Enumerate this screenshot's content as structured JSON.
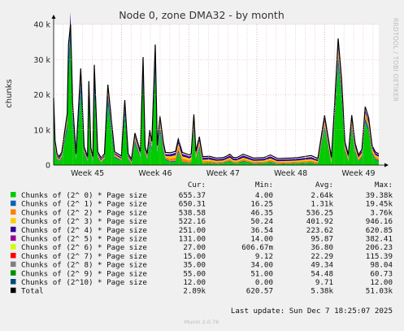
{
  "chart_data": {
    "type": "area",
    "title": "Node 0, zone DMA32 - by month",
    "ylabel": "chunks",
    "side_label": "RRDTOOL / TOBI OETIKER",
    "x_ticks": [
      "Week 45",
      "Week 46",
      "Week 47",
      "Week 48",
      "Week 49"
    ],
    "y_ticks": [
      "0",
      "10 k",
      "20 k",
      "30 k",
      "40 k"
    ],
    "y_tick_values": [
      0,
      10000,
      20000,
      30000,
      40000
    ],
    "ylim": [
      0,
      40000
    ],
    "xlim": [
      0,
      4.8
    ],
    "grid": true,
    "legend_headers": [
      "Cur:",
      "Min:",
      "Avg:",
      "Max:"
    ],
    "series": [
      {
        "name": "Chunks of (2^ 0) * Page size",
        "color": "#00cc00",
        "cur": "655.37",
        "min": "4.00",
        "avg": "2.64k",
        "max": "39.38k"
      },
      {
        "name": "Chunks of (2^ 1) * Page size",
        "color": "#0066b3",
        "cur": "650.31",
        "min": "16.25",
        "avg": "1.31k",
        "max": "19.45k"
      },
      {
        "name": "Chunks of (2^ 2) * Page size",
        "color": "#ff8000",
        "cur": "538.58",
        "min": "46.35",
        "avg": "536.25",
        "max": "3.76k"
      },
      {
        "name": "Chunks of (2^ 3) * Page size",
        "color": "#ffcc00",
        "cur": "522.16",
        "min": "50.24",
        "avg": "401.92",
        "max": "946.16"
      },
      {
        "name": "Chunks of (2^ 4) * Page size",
        "color": "#330099",
        "cur": "251.00",
        "min": "36.54",
        "avg": "223.62",
        "max": "620.85"
      },
      {
        "name": "Chunks of (2^ 5) * Page size",
        "color": "#990099",
        "cur": "131.00",
        "min": "14.00",
        "avg": "95.87",
        "max": "382.41"
      },
      {
        "name": "Chunks of (2^ 6) * Page size",
        "color": "#ccff00",
        "cur": "27.00",
        "min": "606.67m",
        "avg": "36.80",
        "max": "206.23"
      },
      {
        "name": "Chunks of (2^ 7) * Page size",
        "color": "#ff0000",
        "cur": "15.00",
        "min": "9.12",
        "avg": "22.29",
        "max": "115.39"
      },
      {
        "name": "Chunks of (2^ 8) * Page size",
        "color": "#808080",
        "cur": "35.00",
        "min": "34.00",
        "avg": "49.34",
        "max": "98.04"
      },
      {
        "name": "Chunks of (2^ 9) * Page size",
        "color": "#008f00",
        "cur": "55.00",
        "min": "51.00",
        "avg": "54.48",
        "max": "60.73"
      },
      {
        "name": "Chunks of (2^10) * Page size",
        "color": "#00487d",
        "cur": "12.00",
        "min": "0.00",
        "avg": "9.71",
        "max": "12.00"
      },
      {
        "name": "Total",
        "color": "#000000",
        "cur": "2.89k",
        "min": "620.57",
        "avg": "5.38k",
        "max": "51.03k"
      }
    ],
    "stack_profile": {
      "x": [
        0,
        0.02,
        0.05,
        0.08,
        0.12,
        0.2,
        0.22,
        0.25,
        0.28,
        0.33,
        0.4,
        0.45,
        0.5,
        0.52,
        0.55,
        0.58,
        0.6,
        0.65,
        0.7,
        0.75,
        0.8,
        0.9,
        1.0,
        1.05,
        1.1,
        1.15,
        1.2,
        1.28,
        1.32,
        1.35,
        1.38,
        1.42,
        1.45,
        1.5,
        1.53,
        1.57,
        1.62,
        1.65,
        1.72,
        1.8,
        1.84,
        1.9,
        1.96,
        2.0,
        2.03,
        2.07,
        2.1,
        2.15,
        2.2,
        2.3,
        2.4,
        2.5,
        2.55,
        2.6,
        2.65,
        2.7,
        2.8,
        2.95,
        3.1,
        3.2,
        3.3,
        3.5,
        3.6,
        3.8,
        3.9,
        4.0,
        4.1,
        4.15,
        4.2,
        4.25,
        4.3,
        4.35,
        4.4,
        4.45,
        4.5,
        4.55,
        4.6,
        4.65,
        4.7,
        4.75,
        4.8
      ],
      "green": [
        13000,
        4000,
        1500,
        1000,
        2000,
        10000,
        25000,
        35000,
        12000,
        1500,
        20000,
        3000,
        1000,
        18000,
        3000,
        1000,
        21000,
        2000,
        800,
        1500,
        17000,
        2000,
        1200,
        14000,
        1500,
        500,
        6000,
        2000,
        24000,
        3000,
        1500,
        6000,
        4000,
        26000,
        3000,
        9000,
        3500,
        1500,
        800,
        900,
        3500,
        700,
        600,
        500,
        700,
        10000,
        1500,
        4500,
        500,
        600,
        400,
        500,
        800,
        1000,
        600,
        500,
        1000,
        400,
        500,
        800,
        300,
        400,
        500,
        700,
        300,
        10000,
        400,
        13000,
        28000,
        19000,
        4000,
        1000,
        10000,
        3500,
        1000,
        2000,
        12000,
        9500,
        3000,
        1500,
        1000
      ],
      "blue": [
        3000,
        1000,
        300,
        200,
        300,
        2000,
        5000,
        6000,
        3000,
        300,
        4000,
        600,
        200,
        3000,
        500,
        200,
        4000,
        400,
        100,
        300,
        3000,
        400,
        200,
        2000,
        300,
        100,
        1000,
        400,
        3000,
        600,
        300,
        1500,
        800,
        4000,
        600,
        2000,
        800,
        300,
        300,
        300,
        800,
        200,
        200,
        100,
        200,
        1200,
        300,
        1000,
        100,
        100,
        100,
        100,
        200,
        200,
        100,
        100,
        200,
        100,
        100,
        200,
        100,
        100,
        100,
        100,
        100,
        1200,
        100,
        1500,
        3000,
        2000,
        500,
        200,
        1200,
        600,
        200,
        400,
        1400,
        1000,
        500,
        300,
        300
      ],
      "orange": [
        1000,
        500,
        300,
        200,
        300,
        800,
        1500,
        1500,
        800,
        300,
        1000,
        400,
        200,
        800,
        300,
        200,
        1000,
        300,
        200,
        300,
        800,
        300,
        200,
        700,
        300,
        200,
        500,
        300,
        900,
        400,
        300,
        600,
        500,
        1000,
        500,
        700,
        500,
        400,
        800,
        900,
        1000,
        900,
        800,
        700,
        700,
        900,
        600,
        700,
        500,
        500,
        400,
        400,
        400,
        500,
        400,
        400,
        500,
        400,
        400,
        500,
        400,
        400,
        400,
        500,
        400,
        700,
        500,
        800,
        1200,
        900,
        600,
        500,
        800,
        600,
        500,
        600,
        800,
        800,
        600,
        550,
        540
      ],
      "yellow": [
        700,
        400,
        300,
        200,
        300,
        600,
        800,
        900,
        600,
        300,
        700,
        300,
        200,
        600,
        300,
        200,
        700,
        300,
        200,
        300,
        600,
        300,
        200,
        500,
        300,
        200,
        400,
        300,
        700,
        400,
        300,
        500,
        400,
        800,
        400,
        600,
        500,
        400,
        600,
        700,
        800,
        700,
        600,
        600,
        600,
        700,
        500,
        600,
        400,
        400,
        300,
        300,
        300,
        400,
        300,
        300,
        400,
        300,
        300,
        400,
        300,
        300,
        300,
        400,
        300,
        600,
        400,
        700,
        900,
        700,
        500,
        400,
        600,
        500,
        400,
        500,
        700,
        700,
        500,
        520,
        520
      ],
      "rest": [
        600,
        500,
        400,
        400,
        400,
        500,
        600,
        700,
        500,
        400,
        600,
        400,
        400,
        500,
        400,
        400,
        600,
        400,
        400,
        400,
        500,
        400,
        400,
        500,
        400,
        400,
        500,
        400,
        600,
        400,
        400,
        500,
        400,
        700,
        500,
        600,
        500,
        500,
        600,
        700,
        800,
        700,
        600,
        600,
        600,
        700,
        600,
        700,
        600,
        600,
        500,
        500,
        500,
        600,
        500,
        500,
        600,
        500,
        500,
        600,
        500,
        500,
        500,
        600,
        500,
        700,
        500,
        700,
        900,
        700,
        600,
        500,
        700,
        600,
        500,
        600,
        700,
        700,
        600,
        560,
        550
      ],
      "total_extra": [
        800,
        600,
        400,
        400,
        400,
        800,
        1500,
        1800,
        800,
        400,
        1200,
        500,
        400,
        1000,
        400,
        400,
        1200,
        400,
        400,
        400,
        1000,
        400,
        400,
        800,
        400,
        300,
        700,
        400,
        1500,
        500,
        400,
        800,
        600,
        1800,
        600,
        1000,
        600,
        500,
        400,
        400,
        500,
        400,
        400,
        400,
        400,
        900,
        400,
        600,
        300,
        300,
        300,
        300,
        300,
        400,
        300,
        300,
        400,
        300,
        300,
        400,
        300,
        300,
        300,
        400,
        300,
        900,
        300,
        1100,
        2000,
        1300,
        500,
        300,
        900,
        500,
        300,
        400,
        1000,
        800,
        400,
        300,
        300
      ]
    }
  },
  "footer": {
    "last_update": "Last update: Sun Dec  7 18:25:07 2025",
    "version": "Munin 2.0.76"
  }
}
